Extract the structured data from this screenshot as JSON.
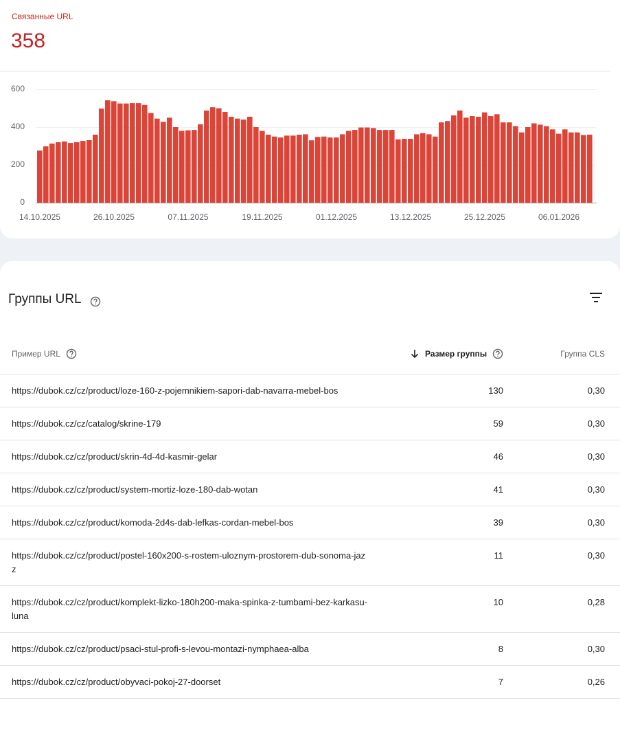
{
  "header": {
    "metric_label": "Связанные URL",
    "metric_value": 358
  },
  "chart_data": {
    "type": "bar",
    "categories": [
      "14.10.2025",
      null,
      null,
      null,
      null,
      null,
      null,
      null,
      null,
      null,
      null,
      null,
      "26.10.2025",
      null,
      null,
      null,
      null,
      null,
      null,
      null,
      null,
      null,
      null,
      null,
      "07.11.2025",
      null,
      null,
      null,
      null,
      null,
      null,
      null,
      null,
      null,
      null,
      null,
      "19.11.2025",
      null,
      null,
      null,
      null,
      null,
      null,
      null,
      null,
      null,
      null,
      null,
      "01.12.2025",
      null,
      null,
      null,
      null,
      null,
      null,
      null,
      null,
      null,
      null,
      null,
      "13.12.2025",
      null,
      null,
      null,
      null,
      null,
      null,
      null,
      null,
      null,
      null,
      null,
      "25.12.2025",
      null,
      null,
      null,
      null,
      null,
      null,
      null,
      null,
      null,
      null,
      null,
      "06.01.2026",
      null,
      null,
      null,
      null,
      null
    ],
    "values": [
      276,
      298,
      313,
      320,
      324,
      316,
      320,
      327,
      331,
      360,
      498,
      542,
      537,
      525,
      525,
      527,
      527,
      517,
      475,
      445,
      428,
      450,
      400,
      380,
      383,
      385,
      415,
      488,
      505,
      500,
      480,
      455,
      445,
      440,
      455,
      400,
      380,
      360,
      350,
      345,
      355,
      355,
      360,
      362,
      330,
      348,
      350,
      345,
      345,
      362,
      380,
      385,
      398,
      398,
      395,
      385,
      385,
      385,
      335,
      338,
      338,
      362,
      368,
      362,
      350,
      425,
      432,
      462,
      488,
      450,
      458,
      455,
      478,
      458,
      468,
      425,
      425,
      405,
      372,
      400,
      420,
      413,
      405,
      388,
      365,
      388,
      372,
      372,
      358,
      360
    ],
    "color": "#db4437",
    "ylim": [
      0,
      600
    ],
    "yticks": [
      0,
      200,
      400,
      600
    ],
    "grid": true
  },
  "table": {
    "title": "Группы URL",
    "columns": [
      "Пример URL",
      "Размер группы",
      "Группа CLS"
    ],
    "rows": [
      [
        "https://dubok.cz/cz/product/loze-160-z-pojemnikiem-sapori-dab-navarra-mebel-bos",
        130,
        "0,30"
      ],
      [
        "https://dubok.cz/cz/catalog/skrine-179",
        59,
        "0,30"
      ],
      [
        "https://dubok.cz/cz/product/skrin-4d-4d-kasmir-gelar",
        46,
        "0,30"
      ],
      [
        "https://dubok.cz/cz/product/system-mortiz-loze-180-dab-wotan",
        41,
        "0,30"
      ],
      [
        "https://dubok.cz/cz/product/komoda-2d4s-dab-lefkas-cordan-mebel-bos",
        39,
        "0,30"
      ],
      [
        "https://dubok.cz/cz/product/postel-160x200-s-rostem-uloznym-prostorem-dub-sonoma-jazz",
        11,
        "0,30"
      ],
      [
        "https://dubok.cz/cz/product/komplekt-lizko-180h200-maka-spinka-z-tumbami-bez-karkasu-luna",
        10,
        "0,28"
      ],
      [
        "https://dubok.cz/cz/product/psaci-stul-profi-s-levou-montazi-nymphaea-alba",
        8,
        "0,30"
      ],
      [
        "https://dubok.cz/cz/product/obyvaci-pokoj-27-doorset",
        7,
        "0,26"
      ]
    ]
  }
}
